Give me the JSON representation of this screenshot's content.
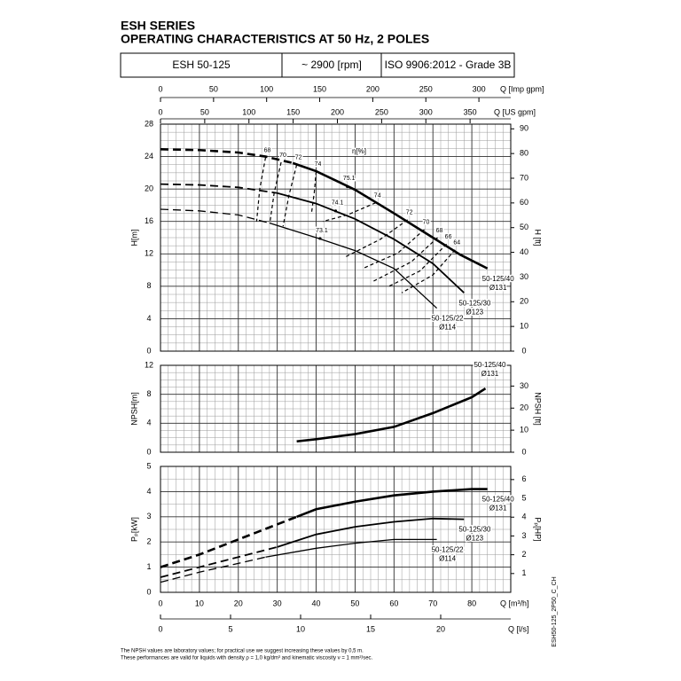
{
  "header": {
    "series_title": "ESH SERIES",
    "subtitle": "OPERATING CHARACTERISTICS AT 50 Hz, 2 POLES",
    "model": "ESH 50-125",
    "speed": "~ 2900 [rpm]",
    "standard": "ISO 9906:2012 - Grade 3B"
  },
  "footnotes": [
    "The NPSH values are laboratory values; for practical use we suggest increasing these values by 0,5 m.",
    "These performances are valid for liquids with density ρ = 1,0 kg/dm³ and kinematic viscosity ν = 1 mm²/sec."
  ],
  "document_code": "ESH50-125_2P50_C_CH",
  "chart_data": [
    {
      "type": "line",
      "ylabel": "H[m]",
      "y2label": "H [ft]",
      "xlim": [
        0,
        90
      ],
      "xticks": [
        0,
        10,
        20,
        30,
        40,
        50,
        60,
        70,
        80
      ],
      "ylim": [
        0,
        28
      ],
      "yticks": [
        0,
        4,
        8,
        12,
        16,
        20,
        24,
        28
      ],
      "y2lim": [
        0,
        91.9
      ],
      "y2ticks": [
        0,
        10,
        20,
        30,
        40,
        50,
        60,
        70,
        80,
        90
      ],
      "grid": true,
      "minor_x": 5,
      "minor_y": 4,
      "top_axes": [
        {
          "label": "Q [Imp gpm]",
          "lim": [
            0,
            330
          ],
          "ticks": [
            0,
            50,
            100,
            150,
            200,
            250,
            300
          ]
        },
        {
          "label": "Q [US gpm]",
          "lim": [
            0,
            396
          ],
          "ticks": [
            0,
            50,
            100,
            150,
            200,
            250,
            300,
            350
          ]
        }
      ],
      "series": [
        {
          "name": "50-125/40",
          "diameter": "Ø131",
          "color": "#000000",
          "width": 2.6,
          "dashed_until": 34,
          "x": [
            0,
            10,
            20,
            27,
            34,
            40,
            50,
            60,
            70,
            77,
            84
          ],
          "values": [
            24.9,
            24.8,
            24.5,
            24.0,
            23.2,
            22.2,
            19.9,
            17.0,
            14.0,
            11.9,
            10.2
          ]
        },
        {
          "name": "50-125/30",
          "diameter": "Ø123",
          "color": "#000000",
          "width": 1.8,
          "dashed_until": 30,
          "x": [
            0,
            10,
            20,
            30,
            40,
            50,
            60,
            70,
            78
          ],
          "values": [
            20.6,
            20.5,
            20.2,
            19.5,
            18.2,
            16.3,
            13.8,
            10.8,
            7.2
          ]
        },
        {
          "name": "50-125/22",
          "diameter": "Ø114",
          "color": "#000000",
          "width": 1.3,
          "dashed_until": 28,
          "x": [
            0,
            10,
            20,
            28,
            40,
            50,
            60,
            71
          ],
          "values": [
            17.5,
            17.3,
            16.8,
            15.8,
            14.0,
            12.4,
            10.2,
            5.3
          ]
        }
      ],
      "efficiency_label": "η[%]",
      "efficiency_lines": [
        {
          "name": "68",
          "x": [
            27,
            25.5,
            24.7
          ],
          "values": [
            23.9,
            20.0,
            16.0
          ]
        },
        {
          "name": "70",
          "x": [
            31,
            29.2,
            28.1
          ],
          "values": [
            23.3,
            19.5,
            15.8
          ]
        },
        {
          "name": "72",
          "x": [
            35,
            33,
            31.5
          ],
          "values": [
            23.0,
            19.2,
            15.4
          ]
        },
        {
          "name": "74",
          "x": [
            40,
            39.5,
            38.8
          ],
          "values": [
            22.2,
            19.5,
            17.0
          ]
        },
        {
          "name": "74",
          "x": [
            55.3,
            48,
            41.7
          ],
          "values": [
            18.3,
            16.8,
            16.0
          ]
        },
        {
          "name": "72",
          "x": [
            63.5,
            56.5,
            47.4
          ],
          "values": [
            16.2,
            13.8,
            11.6
          ]
        },
        {
          "name": "70",
          "x": [
            67.8,
            61,
            52
          ],
          "values": [
            15.0,
            12.1,
            10.2
          ]
        },
        {
          "name": "68",
          "x": [
            71.2,
            64.4,
            54.2
          ],
          "values": [
            14.0,
            11.0,
            8.5
          ]
        },
        {
          "name": "66",
          "x": [
            73.5,
            66.7,
            58.7
          ],
          "values": [
            13.2,
            9.9,
            8.0
          ]
        },
        {
          "name": "64",
          "x": [
            75.7,
            70,
            62
          ],
          "values": [
            12.5,
            9.4,
            7.2
          ]
        }
      ],
      "efficiency_points": [
        {
          "label": "75.1",
          "x": 48,
          "y": 20.3
        },
        {
          "label": "74.1",
          "x": 45,
          "y": 17.3
        },
        {
          "label": "73.1",
          "x": 41,
          "y": 13.9
        }
      ]
    },
    {
      "type": "line",
      "ylabel": "NPSH[m]",
      "y2label": "NPSH [ft]",
      "xlim": [
        0,
        90
      ],
      "xticks": [
        0,
        10,
        20,
        30,
        40,
        50,
        60,
        70,
        80
      ],
      "ylim": [
        0,
        12
      ],
      "yticks": [
        0,
        4,
        8,
        12
      ],
      "y2lim": [
        0,
        39.4
      ],
      "y2ticks": [
        0,
        10,
        20,
        30
      ],
      "grid": true,
      "minor_x": 5,
      "minor_y": 4,
      "series": [
        {
          "name": "50-125/40",
          "diameter": "Ø131",
          "color": "#000000",
          "width": 2.6,
          "x": [
            35,
            40,
            50,
            60,
            70,
            80,
            83.5
          ],
          "values": [
            1.5,
            1.8,
            2.5,
            3.5,
            5.4,
            7.6,
            8.8
          ]
        }
      ]
    },
    {
      "type": "line",
      "ylabel": "Pₚ[kW]",
      "y2label": "Pₚ[HP]",
      "xlabel": "Q [m³/h]",
      "xlim": [
        0,
        90
      ],
      "xticks": [
        0,
        10,
        20,
        30,
        40,
        50,
        60,
        70,
        80
      ],
      "ylim": [
        0,
        5
      ],
      "yticks": [
        0,
        1,
        2,
        3,
        4,
        5
      ],
      "y2lim": [
        0,
        6.7
      ],
      "y2ticks": [
        1,
        2,
        3,
        4,
        5,
        6
      ],
      "grid": true,
      "minor_x": 5,
      "minor_y": 2,
      "bottom_axes": [
        {
          "label": "Q [l/s]",
          "lim": [
            0,
            25
          ],
          "ticks": [
            0,
            5,
            10,
            15,
            20
          ]
        }
      ],
      "series": [
        {
          "name": "50-125/40",
          "diameter": "Ø131",
          "color": "#000000",
          "width": 2.6,
          "dashed_until": 35,
          "x": [
            0,
            10,
            20,
            35,
            40,
            50,
            60,
            70,
            80,
            84
          ],
          "values": [
            1.0,
            1.5,
            2.1,
            3.0,
            3.3,
            3.6,
            3.85,
            4.0,
            4.1,
            4.1
          ]
        },
        {
          "name": "50-125/30",
          "diameter": "Ø123",
          "color": "#000000",
          "width": 1.8,
          "dashed_until": 30,
          "x": [
            0,
            10,
            20,
            30,
            40,
            50,
            60,
            70,
            78
          ],
          "values": [
            0.6,
            1.0,
            1.4,
            1.8,
            2.3,
            2.6,
            2.8,
            2.93,
            2.9
          ]
        },
        {
          "name": "50-125/22",
          "diameter": "Ø114",
          "color": "#000000",
          "width": 1.3,
          "dashed_until": 27,
          "x": [
            0,
            10,
            20,
            27,
            40,
            50,
            60,
            71
          ],
          "values": [
            0.4,
            0.8,
            1.15,
            1.4,
            1.75,
            1.95,
            2.1,
            2.1
          ]
        }
      ]
    }
  ]
}
